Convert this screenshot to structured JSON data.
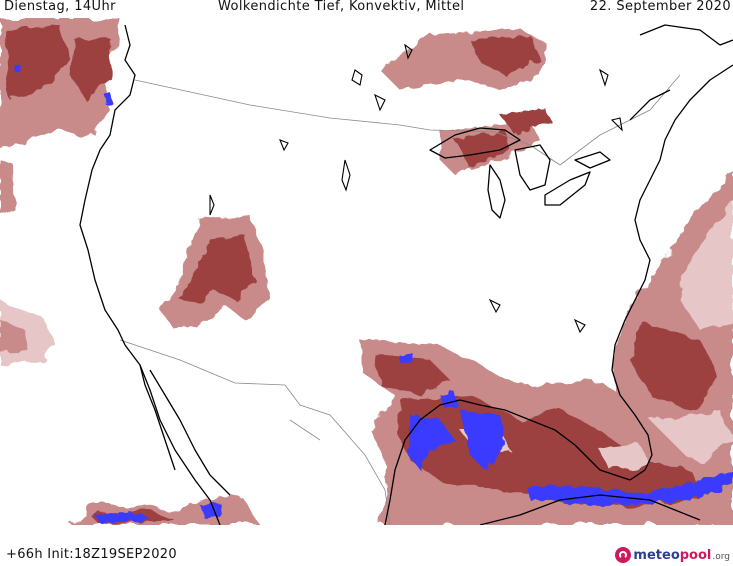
{
  "header": {
    "day": "Dienstag, 14Uhr",
    "title": "Wolkendichte   Tief, Konvektiv, Mittel",
    "date": "22. September 2020"
  },
  "footer": {
    "run": "+66h  Init:18Z19SEP2020",
    "brand_a": "meteo",
    "brand_b": "pool",
    "brand_tld": ".org"
  },
  "colors": {
    "cloud_light": "#e6c6c6",
    "cloud_mid": "#c98a8a",
    "cloud_dense": "#9c3f3f",
    "convective": "#3b3bff",
    "coastline": "#000000",
    "border": "#8a8a8a"
  }
}
